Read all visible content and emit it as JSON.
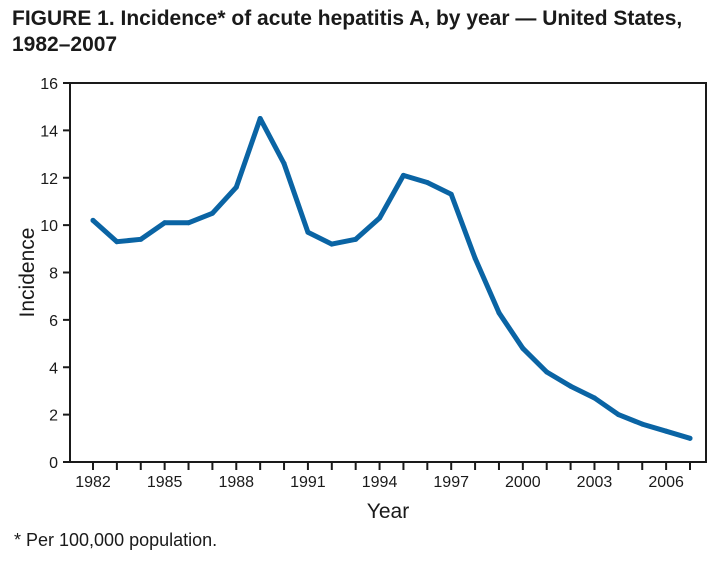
{
  "figure": {
    "title": "FIGURE 1. Incidence* of acute hepatitis A, by year — United States, 1982–2007",
    "footnote": "* Per 100,000 population."
  },
  "chart_data": {
    "type": "line",
    "title": "FIGURE 1. Incidence* of acute hepatitis A, by year — United States, 1982–2007",
    "xlabel": "Year",
    "ylabel": "Incidence",
    "xlim": [
      1982,
      2007
    ],
    "ylim": [
      0,
      16
    ],
    "yticks": [
      0,
      2,
      4,
      6,
      8,
      10,
      12,
      14,
      16
    ],
    "xtick_labels": [
      1982,
      1985,
      1988,
      1991,
      1994,
      1997,
      2000,
      2003,
      2006
    ],
    "grid": false,
    "line_color": "#0a64a4",
    "series": [
      {
        "x": [
          1982,
          1983,
          1984,
          1985,
          1986,
          1987,
          1988,
          1989,
          1990,
          1991,
          1992,
          1993,
          1994,
          1995,
          1996,
          1997,
          1998,
          1999,
          2000,
          2001,
          2002,
          2003,
          2004,
          2005,
          2006,
          2007
        ],
        "values": [
          10.2,
          9.3,
          9.4,
          10.1,
          10.1,
          10.5,
          11.6,
          14.5,
          12.6,
          9.7,
          9.2,
          9.4,
          10.3,
          12.1,
          11.8,
          11.3,
          8.6,
          6.3,
          4.8,
          3.8,
          3.2,
          2.7,
          2.0,
          1.6,
          1.3,
          1.0
        ]
      }
    ]
  }
}
